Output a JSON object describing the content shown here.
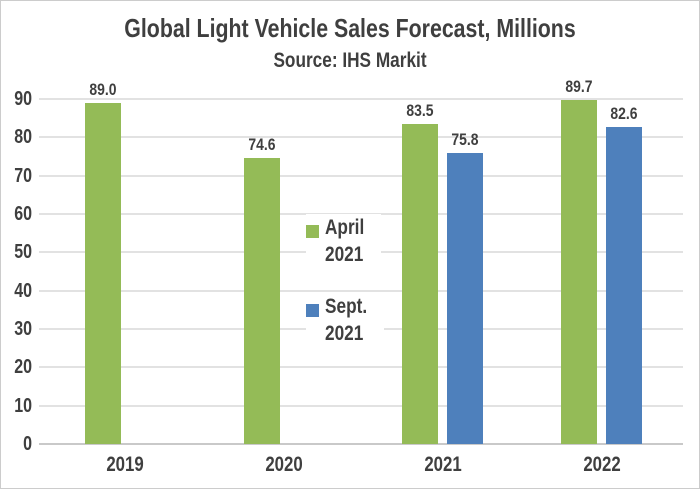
{
  "window": {
    "background": "#ffffff",
    "border_color": "#cccccc"
  },
  "chart": {
    "title": "Global Light Vehicle Sales Forecast, Millions",
    "subtitle": "Source: IHS Markit"
  },
  "chart_data": {
    "type": "bar",
    "title": "Global Light Vehicle Sales Forecast, Millions",
    "subtitle": "Source: IHS Markit",
    "categories": [
      "2019",
      "2020",
      "2021",
      "2022"
    ],
    "series": [
      {
        "name": "April 2021",
        "color": "#94BB57",
        "values": [
          89.0,
          74.6,
          83.5,
          89.7
        ]
      },
      {
        "name": "Sept. 2021",
        "color": "#4E80BC",
        "values": [
          null,
          null,
          75.8,
          82.6
        ]
      }
    ],
    "data_labels": {
      "April 2021": [
        "89.0",
        "74.6",
        "83.5",
        "89.7"
      ],
      "Sept. 2021": [
        null,
        null,
        "75.8",
        "82.6"
      ]
    },
    "xlabel": "",
    "ylabel": "",
    "ylim": [
      0,
      90
    ],
    "ytick_step": 10,
    "ytick_labels": [
      "0",
      "10",
      "20",
      "30",
      "40",
      "50",
      "60",
      "70",
      "80",
      "90"
    ],
    "grid": true,
    "legend": {
      "position": "inside-plot-center-left",
      "entries": [
        {
          "series": "April 2021",
          "lines": [
            "April",
            "2021"
          ],
          "color": "#94BB57"
        },
        {
          "series": "Sept. 2021",
          "lines": [
            "Sept.",
            "2021"
          ],
          "color": "#4E80BC"
        }
      ]
    },
    "text_color": "#3F3F3F",
    "gridline_color": "#E2E2E2",
    "axisline_color": "#C9C9C9"
  }
}
